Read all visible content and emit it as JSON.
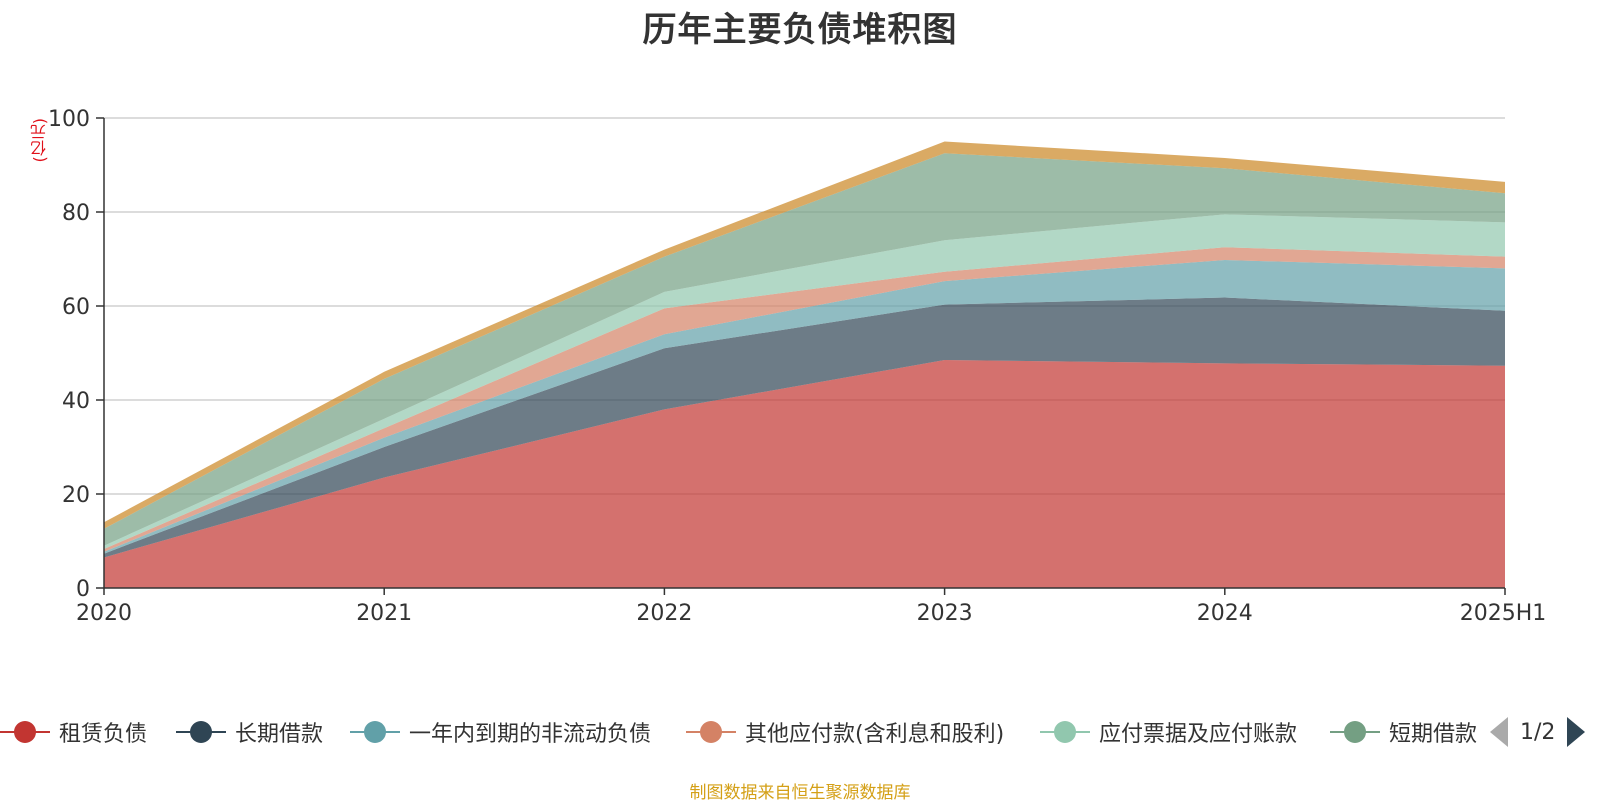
{
  "title": "历年主要负债堆积图",
  "unit": "(亿元)",
  "source": "制图数据来自恒生聚源数据库",
  "legend_pager": "1/2",
  "chart_data": {
    "type": "area",
    "stacked": true,
    "x": [
      "2020",
      "2021",
      "2022",
      "2023",
      "2024",
      "2025H1"
    ],
    "ylim": [
      0,
      100
    ],
    "yticks": [
      0,
      20,
      40,
      60,
      80,
      100
    ],
    "grid": true,
    "legend_position": "bottom",
    "series": [
      {
        "name": "租赁负债",
        "color": "#c23531",
        "values": [
          6.5,
          23.5,
          38,
          48.5,
          47.8,
          47.3
        ]
      },
      {
        "name": "长期借款",
        "color": "#2f4554",
        "values": [
          0.8,
          6.5,
          13,
          11.8,
          14,
          11.7
        ]
      },
      {
        "name": "一年内到期的非流动负债",
        "color": "#61a0a8",
        "values": [
          0.4,
          2,
          3,
          5,
          8,
          9
        ]
      },
      {
        "name": "其他应付款(含利息和股利)",
        "color": "#d48265",
        "values": [
          0.6,
          2,
          5.5,
          2,
          2.7,
          2.5
        ]
      },
      {
        "name": "应付票据及应付账款",
        "color": "#91c7ae",
        "values": [
          0.7,
          2,
          3.5,
          6.7,
          7,
          7.3
        ]
      },
      {
        "name": "短期借款",
        "color": "#749f83",
        "values": [
          3.6,
          8.5,
          7.5,
          18.5,
          9.8,
          6.2
        ]
      },
      {
        "name": "",
        "color": "#ca8622",
        "values": [
          1.4,
          1.5,
          1.5,
          2.5,
          2.2,
          2.4
        ]
      }
    ]
  }
}
